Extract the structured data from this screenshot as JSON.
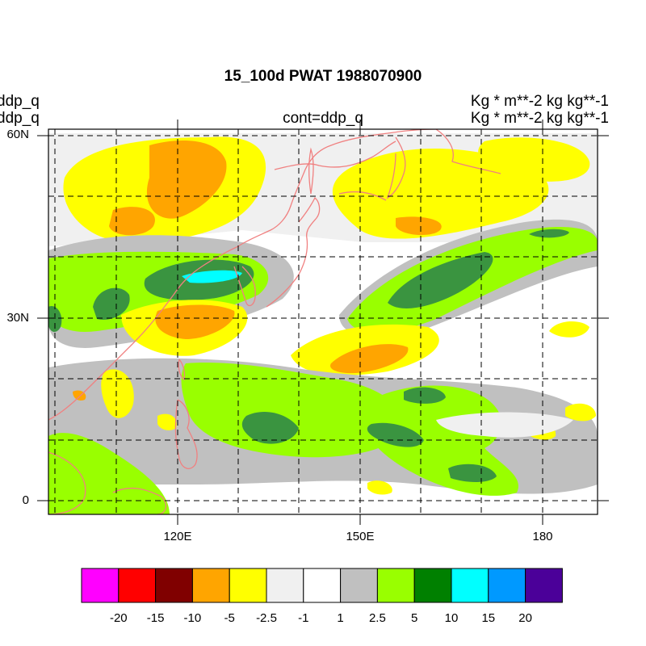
{
  "map": {
    "title": "15_100d PWAT  1988070900",
    "left_label_1": "ddp_q",
    "left_label_2": "ddp_q",
    "center_label": "cont=ddp_q",
    "right_label_1": "Kg   * m**-2 kg kg**-1",
    "right_label_2": "Kg   * m**-2 kg kg**-1",
    "lat_ticks": [
      "60N",
      "30N",
      "0"
    ],
    "lon_ticks": [
      "120E",
      "150E",
      "180"
    ],
    "extent": {
      "lon_min": 100,
      "lon_max": 187,
      "lat_min": -2,
      "lat_max": 61
    }
  },
  "colorbar": {
    "colors": [
      "#ff00ff",
      "#ff0000",
      "#800000",
      "#ffa500",
      "#ffff00",
      "#f0f0f0",
      "#ffffff",
      "#c0c0c0",
      "#99ff00",
      "#008000",
      "#00ffff",
      "#0099ff",
      "#4b0099"
    ],
    "tick_labels": [
      "-20",
      "-15",
      "-10",
      "-5",
      "-2.5",
      "-1",
      "1",
      "2.5",
      "5",
      "10",
      "15",
      "20"
    ]
  },
  "colors": {
    "coastline": "#f08080",
    "grid": "#000000"
  }
}
